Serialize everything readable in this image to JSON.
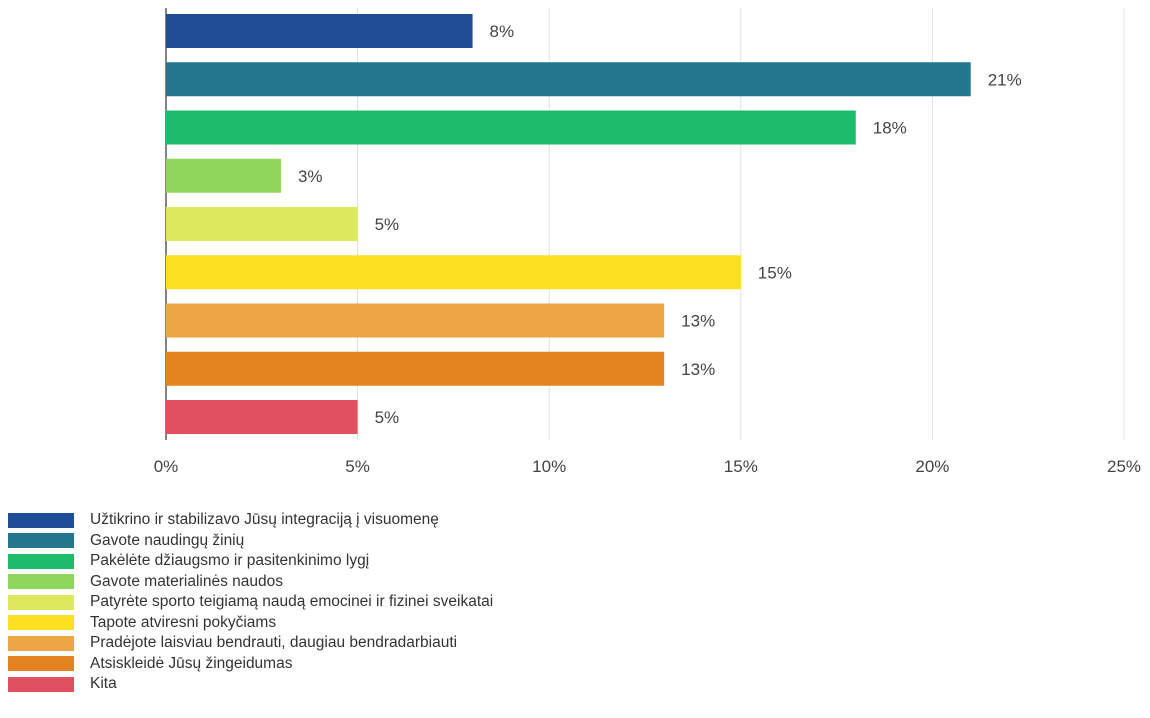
{
  "chart_data": {
    "type": "bar",
    "orientation": "horizontal",
    "series": [
      {
        "name": "Užtikrino ir stabilizavo Jūsų integraciją į visuomenę",
        "value": 8,
        "label": "8%",
        "color": "#1f4e96"
      },
      {
        "name": "Gavote naudingų žinių",
        "value": 21,
        "label": "21%",
        "color": "#22778e"
      },
      {
        "name": "Pakėlėte džiaugsmo ir pasitenkinimo lygį",
        "value": 18,
        "label": "18%",
        "color": "#1dbb6a"
      },
      {
        "name": "Gavote materialinės naudos",
        "value": 3,
        "label": "3%",
        "color": "#8fd65c"
      },
      {
        "name": "Patyrėte sporto teigiamą naudą emocinei ir fizinei sveikatai",
        "value": 5,
        "label": "5%",
        "color": "#dde85c"
      },
      {
        "name": "Tapote atviresni pokyčiams",
        "value": 15,
        "label": "15%",
        "color": "#fce020"
      },
      {
        "name": "Pradėjote laisviau bendrauti, daugiau bendradarbiauti",
        "value": 13,
        "label": "13%",
        "color": "#eda645"
      },
      {
        "name": "Atsiskleidė Jūsų žingeidumas",
        "value": 13,
        "label": "13%",
        "color": "#e3831f"
      },
      {
        "name": "Kita",
        "value": 5,
        "label": "5%",
        "color": "#df5060"
      }
    ],
    "xlim": [
      0,
      25
    ],
    "x_ticks": [
      0,
      5,
      10,
      15,
      20,
      25
    ],
    "x_tick_labels": [
      "0%",
      "5%",
      "10%",
      "15%",
      "20%",
      "25%"
    ],
    "grid": true,
    "legend_position": "bottom-left"
  }
}
